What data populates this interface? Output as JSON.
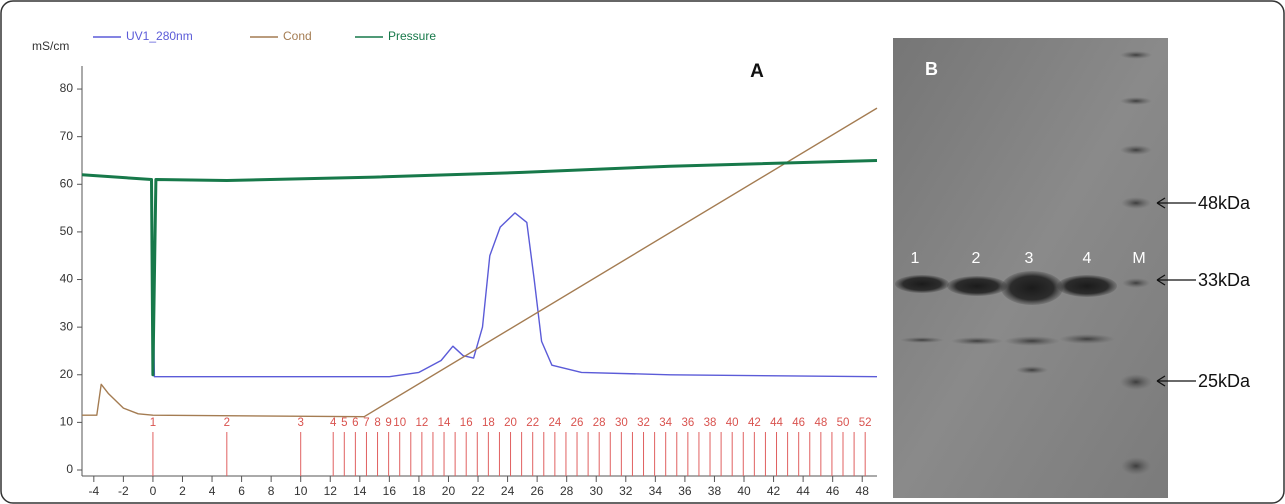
{
  "chart_data": {
    "type": "line",
    "title": "A",
    "y_label": "mS/cm",
    "xlim": [
      -4.8,
      49
    ],
    "ylim": [
      0,
      84
    ],
    "xticks": [
      -4,
      -2,
      0,
      2,
      4,
      6,
      8,
      10,
      12,
      14,
      16,
      18,
      20,
      22,
      24,
      26,
      28,
      30,
      32,
      34,
      36,
      38,
      40,
      42,
      44,
      46,
      48
    ],
    "yticks": [
      0,
      10,
      20,
      30,
      40,
      50,
      60,
      70,
      80
    ],
    "grid": false,
    "series": [
      {
        "name": "UV1_280nm",
        "color": "#5b5bd8",
        "x": [
          0,
          0.1,
          16,
          18,
          19.5,
          20.3,
          21,
          21.7,
          22.3,
          22.8,
          23.5,
          24.5,
          25.3,
          25.8,
          26.3,
          27,
          29,
          35,
          49
        ],
        "values": [
          42,
          19.6,
          19.6,
          20.5,
          23,
          26,
          24,
          23.5,
          30,
          45,
          51,
          54,
          52,
          40,
          27,
          22,
          20.5,
          20,
          19.6
        ]
      },
      {
        "name": "Cond",
        "color": "#a47c52",
        "x": [
          -4.8,
          -3.8,
          -3.5,
          -3,
          -2,
          -1,
          0,
          14.3,
          49
        ],
        "values": [
          11.5,
          11.5,
          18,
          16,
          13,
          11.8,
          11.5,
          11.2,
          76
        ]
      },
      {
        "name": "Pressure",
        "color": "#17794a",
        "x": [
          -4.8,
          -0.1,
          0,
          0.2,
          5,
          15,
          25,
          35,
          49
        ],
        "values": [
          62,
          61,
          20,
          61,
          60.8,
          61.5,
          62.5,
          63.8,
          65
        ]
      }
    ],
    "fractions": {
      "color": "#e06060",
      "labels": [
        1,
        2,
        3,
        4,
        5,
        6,
        7,
        8,
        9,
        10,
        null,
        12,
        null,
        14,
        null,
        16,
        null,
        18,
        null,
        20,
        null,
        22,
        null,
        24,
        null,
        26,
        null,
        28,
        null,
        30,
        null,
        32,
        null,
        34,
        null,
        36,
        null,
        38,
        null,
        40,
        null,
        42,
        null,
        44,
        null,
        46,
        null,
        48,
        null,
        50,
        null,
        52
      ],
      "x": [
        0,
        5,
        10,
        12.2,
        12.95,
        13.7,
        14.45,
        15.2,
        15.95,
        16.7,
        17.45,
        18.2,
        18.95,
        19.7,
        20.45,
        21.2,
        21.95,
        22.7,
        23.45,
        24.2,
        24.95,
        25.7,
        26.45,
        27.2,
        27.95,
        28.7,
        29.45,
        30.2,
        30.95,
        31.7,
        32.45,
        33.2,
        33.95,
        34.7,
        35.45,
        36.2,
        36.95,
        37.7,
        38.45,
        39.2,
        39.95,
        40.7,
        41.45,
        42.2,
        42.95,
        43.7,
        44.45,
        45.2,
        45.95,
        46.7,
        47.45,
        48.2
      ]
    }
  },
  "gel": {
    "label": "B",
    "lanes": [
      "1",
      "2",
      "3",
      "4",
      "M"
    ],
    "markers": [
      "48kDa",
      "33kDa",
      "25kDa"
    ]
  }
}
